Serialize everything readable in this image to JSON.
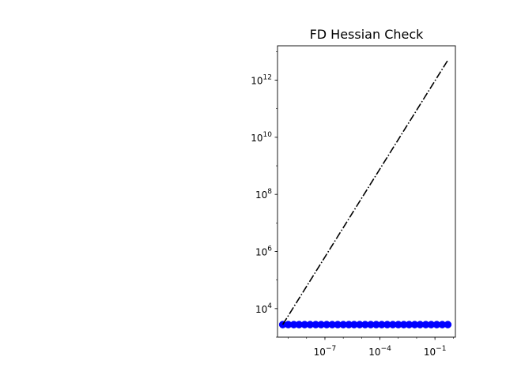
{
  "chart_data": {
    "type": "line",
    "title": "FD Hessian Check",
    "xlabel": "",
    "ylabel": "",
    "xscale": "log",
    "yscale": "log",
    "xlim": [
      2.6e-10,
      1.3
    ],
    "ylim": [
      1000.0,
      16000000000000.0
    ],
    "grid": false,
    "x_ticks": [
      {
        "value": 1e-07,
        "base": "10",
        "exp": "−7"
      },
      {
        "value": 0.0001,
        "base": "10",
        "exp": "−4"
      },
      {
        "value": 0.1,
        "base": "10",
        "exp": "−1"
      }
    ],
    "y_ticks": [
      {
        "value": 10000.0,
        "base": "10",
        "exp": "4"
      },
      {
        "value": 1000000.0,
        "base": "10",
        "exp": "6"
      },
      {
        "value": 100000000.0,
        "base": "10",
        "exp": "8"
      },
      {
        "value": 10000000000.0,
        "base": "10",
        "exp": "10"
      },
      {
        "value": 1000000000000.0,
        "base": "10",
        "exp": "12"
      }
    ],
    "series": [
      {
        "style": "markers",
        "color": "#0000ff",
        "x": [
          5e-10,
          1e-09,
          2e-09,
          3.9e-09,
          7.8e-09,
          1.56e-08,
          3.13e-08,
          6.25e-08,
          1.25e-07,
          2.5e-07,
          5e-07,
          1e-06,
          2e-06,
          3.9e-06,
          7.8e-06,
          1.56e-05,
          3.13e-05,
          6.25e-05,
          0.000125,
          0.00025,
          0.0005,
          0.001,
          0.002,
          0.0039,
          0.0078,
          0.0156,
          0.0313,
          0.0625,
          0.125,
          0.25,
          0.5
        ],
        "y": [
          2750,
          2750,
          2750,
          2750,
          2750,
          2750,
          2750,
          2750,
          2750,
          2750,
          2750,
          2750,
          2750,
          2750,
          2750,
          2750,
          2750,
          2750,
          2750,
          2750,
          2750,
          2750,
          2750,
          2750,
          2750,
          2750,
          2750,
          2750,
          2750,
          2750,
          2750
        ]
      },
      {
        "style": "dashdot",
        "color": "#000000",
        "x": [
          5e-10,
          0.5
        ],
        "y": [
          2750,
          5000000000000.0
        ]
      }
    ]
  }
}
